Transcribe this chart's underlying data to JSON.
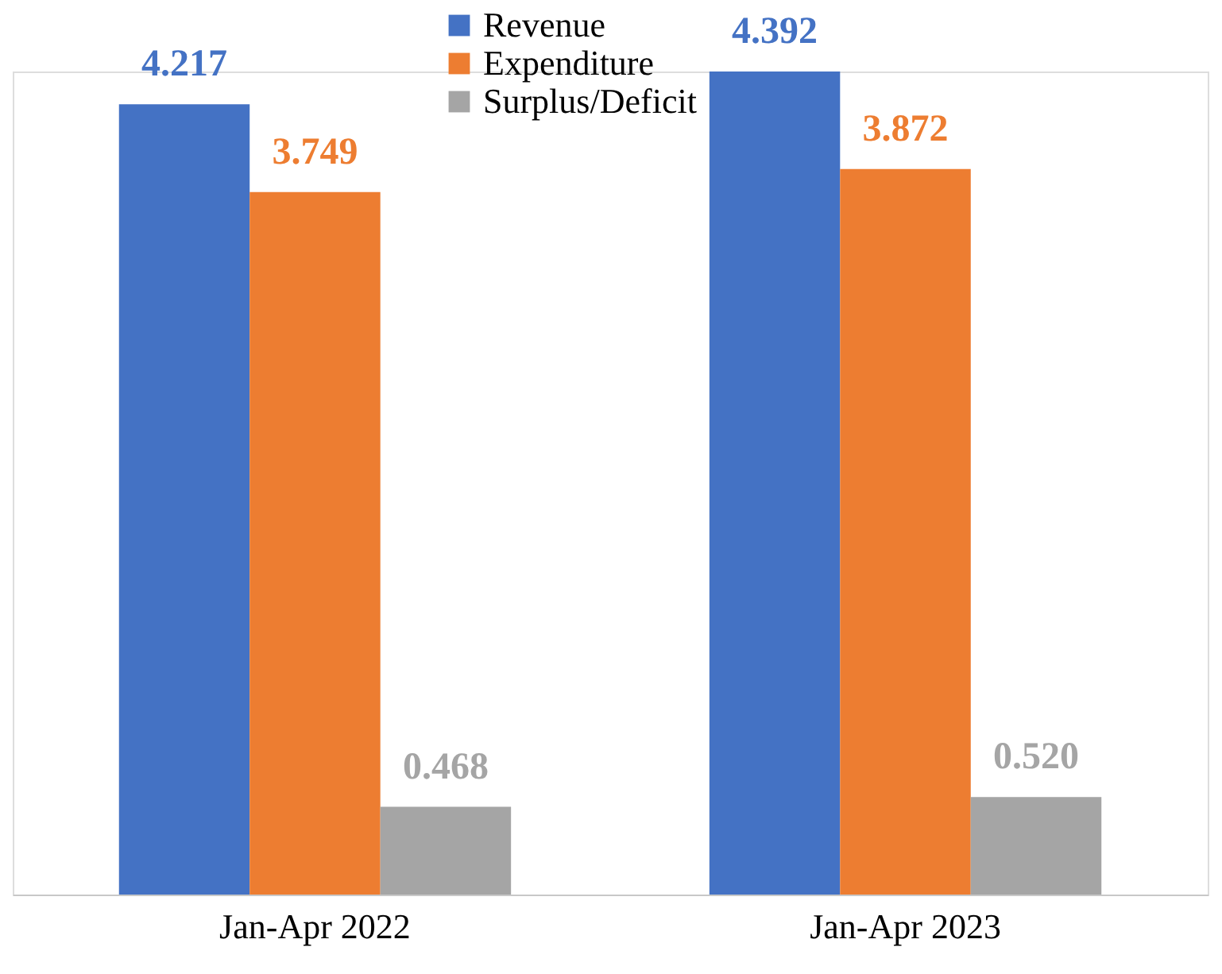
{
  "chart_data": {
    "type": "bar",
    "categories": [
      "Jan-Apr 2022",
      "Jan-Apr 2023"
    ],
    "series": [
      {
        "name": "Revenue",
        "color": "#4472c4",
        "values": [
          4.217,
          4.392
        ],
        "value_labels": [
          "4.217",
          "4.392"
        ]
      },
      {
        "name": "Expenditure",
        "color": "#ed7d31",
        "values": [
          3.749,
          3.872
        ],
        "value_labels": [
          "3.749",
          "3.872"
        ]
      },
      {
        "name": "Surplus/Deficit",
        "color": "#a5a5a5",
        "values": [
          0.468,
          0.52
        ],
        "value_labels": [
          "0.468",
          "0.520"
        ]
      }
    ],
    "legend": "top",
    "grid": false
  }
}
